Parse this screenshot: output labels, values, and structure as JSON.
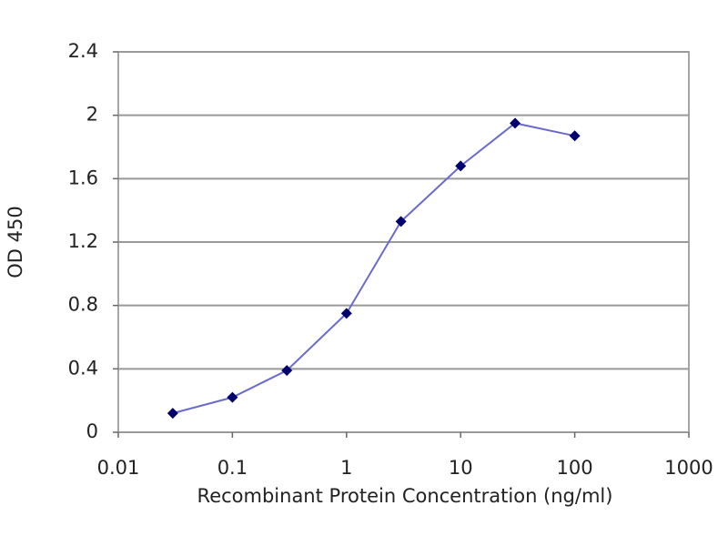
{
  "chart_data": {
    "type": "line",
    "x_label": "Recombinant Protein Concentration (ng/ml)",
    "y_label": "OD 450",
    "x": [
      0.03,
      0.1,
      0.3,
      1,
      3,
      10,
      30,
      100
    ],
    "series": [
      {
        "color": "#6a6acd",
        "marker_color": "#00006e",
        "values": [
          0.12,
          0.22,
          0.39,
          0.75,
          1.33,
          1.68,
          1.95,
          1.87
        ]
      }
    ],
    "xlim": [
      0.01,
      1000
    ],
    "xticks": [
      0.01,
      0.1,
      1,
      10,
      100,
      1000
    ],
    "x_log": true,
    "ylim": [
      0,
      2.4
    ],
    "yticks": [
      0,
      0.4,
      0.8,
      1.2,
      1.6,
      2,
      2.4
    ],
    "grid": true
  }
}
